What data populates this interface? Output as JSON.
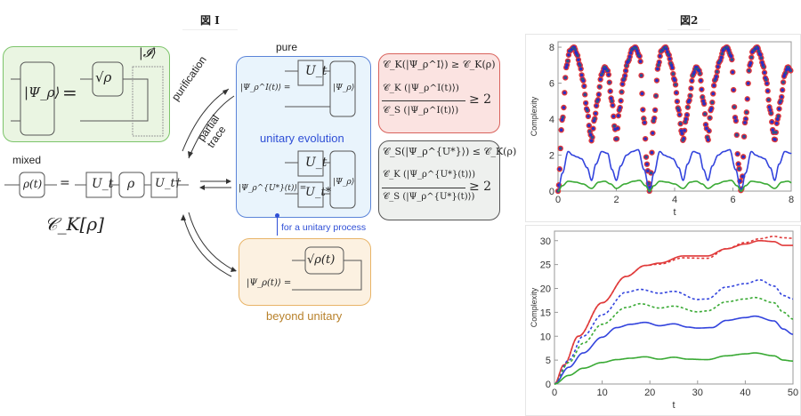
{
  "figure1": {
    "title": "図 I",
    "labels": {
      "pure": "pure",
      "mixed": "mixed",
      "unitary_evolution": "unitary evolution",
      "for_unitary_process": "for a unitary process",
      "beyond_unitary": "beyond unitary",
      "purification": "purification",
      "partial_trace": "partial trace"
    },
    "math": {
      "psi_rho": "|Ψ_ρ⟩",
      "equals": "=",
      "sqrt_rho": "√ρ",
      "identity_ket": "|𝓘⟩",
      "rho_t": "ρ(t)",
      "U_t": "U_t",
      "rho": "ρ",
      "U_t_dagger": "U_t†",
      "U_t_star": "U_t*",
      "ck_rho": "𝒞_K[ρ]",
      "psi_I_t": "|Ψ_ρ^I(t)⟩ =",
      "psi_Ustar_t": "|Ψ_ρ^{U*}(t)⟩ =",
      "psi_rho_t": "|Ψ_ρ(t)⟩ =",
      "sqrt_rho_t": "√ρ(t)"
    },
    "inequalities": {
      "red_line1": "𝒞_K(|Ψ_ρ^I⟩) ≥ 𝒞_K(ρ)",
      "red_num": "𝒞_K (|Ψ_ρ^I(t)⟩)",
      "red_den": "𝒞_S (|Ψ_ρ^I(t)⟩)",
      "red_rhs": "≥ 2",
      "gray_line1": "𝒞_S(|Ψ_ρ^{U*}⟩) ≤ 𝒞_K(ρ)",
      "gray_num": "𝒞_K (|Ψ_ρ^{U*}(t)⟩)",
      "gray_den": "𝒞_S (|Ψ_ρ^{U*}(t)⟩)",
      "gray_rhs": "≥ 2"
    },
    "colors": {
      "green": "#7cc46a",
      "blue": "#5b84d8",
      "orange": "#e8b468",
      "red": "#d9625c",
      "blue_text": "#2f4fd6",
      "orange_text": "#b8822c"
    }
  },
  "figure2": {
    "title": "図2"
  },
  "chart_data": [
    {
      "type": "line",
      "title": "",
      "xlabel": "t",
      "ylabel": "Complexity",
      "xlim": [
        0,
        8
      ],
      "ylim": [
        0,
        8.3
      ],
      "xticks": [
        0,
        2,
        4,
        6,
        8
      ],
      "yticks": [
        0,
        2,
        4,
        6,
        8
      ],
      "period": 3.1416,
      "series": [
        {
          "name": "red dots",
          "color": "#e03a3a",
          "style": "dots",
          "x": [
            0,
            0.15,
            0.3,
            0.4,
            0.55,
            0.65,
            0.75,
            0.85,
            1.0,
            1.1,
            1.15,
            1.25,
            1.35,
            1.5,
            1.6,
            1.7,
            1.85,
            1.95,
            2.0,
            2.1,
            2.25,
            2.4,
            2.55,
            2.65,
            2.8,
            2.95,
            3.05,
            3.14
          ],
          "y": [
            0,
            4.0,
            7.0,
            7.8,
            8.0,
            7.6,
            7.0,
            6.2,
            4.5,
            3.3,
            2.8,
            4.0,
            5.0,
            6.5,
            6.9,
            6.7,
            5.0,
            3.5,
            2.8,
            4.5,
            6.2,
            7.2,
            7.9,
            8.0,
            7.5,
            4.0,
            1.5,
            0
          ]
        },
        {
          "name": "blue dots",
          "color": "#2a2fc4",
          "style": "dots",
          "same_as": "red dots"
        },
        {
          "name": "green markers",
          "color": "#2e8b3a",
          "style": "dots",
          "same_as": "red dots"
        },
        {
          "name": "blue line",
          "color": "#3344dd",
          "style": "solid",
          "x": [
            0,
            0.15,
            0.35,
            0.5,
            0.65,
            0.8,
            1.0,
            1.15,
            1.3,
            1.5,
            1.7,
            1.85,
            2.0,
            2.15,
            2.35,
            2.55,
            2.75,
            2.95,
            3.14
          ],
          "y": [
            0,
            1.0,
            2.2,
            2.0,
            1.9,
            1.8,
            1.3,
            0.6,
            1.5,
            2.2,
            2.1,
            1.2,
            0.6,
            1.4,
            2.0,
            2.2,
            2.3,
            1.2,
            0
          ]
        },
        {
          "name": "green line",
          "color": "#3aaa35",
          "style": "solid",
          "x": [
            0,
            0.15,
            0.35,
            0.6,
            0.85,
            1.15,
            1.4,
            1.6,
            1.8,
            2.0,
            2.3,
            2.6,
            2.8,
            3.0,
            3.14
          ],
          "y": [
            0,
            0.3,
            0.55,
            0.5,
            0.4,
            0.15,
            0.5,
            0.55,
            0.4,
            0.15,
            0.4,
            0.55,
            0.6,
            0.3,
            0
          ]
        }
      ]
    },
    {
      "type": "line",
      "title": "",
      "xlabel": "t",
      "ylabel": "Complexity",
      "xlim": [
        0,
        50
      ],
      "ylim": [
        0,
        32
      ],
      "xticks": [
        0,
        10,
        20,
        30,
        40,
        50
      ],
      "yticks": [
        0,
        5,
        10,
        15,
        20,
        25,
        30
      ],
      "series": [
        {
          "name": "red solid",
          "color": "#e03a3a",
          "style": "solid",
          "x": [
            0,
            2,
            5,
            10,
            15,
            19,
            22,
            27,
            32,
            36,
            40,
            43,
            46,
            48,
            50
          ],
          "y": [
            0,
            4,
            10,
            17,
            22.5,
            24.8,
            25.3,
            26.8,
            26.8,
            28.3,
            29.3,
            30.0,
            29.8,
            29.0,
            29.0
          ]
        },
        {
          "name": "red dotted",
          "color": "#e03a3a",
          "style": "dotted",
          "x": [
            0,
            2,
            5,
            10,
            15,
            19,
            22,
            27,
            32,
            36,
            40,
            43,
            46,
            48,
            50
          ],
          "y": [
            0,
            4,
            10,
            17,
            22.5,
            24.8,
            25.1,
            26.4,
            26.3,
            28.3,
            29.6,
            30.4,
            30.9,
            30.6,
            30.5
          ]
        },
        {
          "name": "blue dotted",
          "color": "#3344dd",
          "style": "dotted",
          "x": [
            0,
            3,
            6,
            10,
            15,
            18,
            22,
            25,
            30,
            32,
            36,
            40,
            43,
            46,
            48,
            50
          ],
          "y": [
            0,
            5,
            10,
            14.5,
            19.2,
            19.8,
            19.0,
            19.4,
            17.7,
            17.8,
            20.3,
            21.0,
            21.8,
            20.5,
            18.5,
            17.8
          ]
        },
        {
          "name": "green dotted",
          "color": "#3aaa35",
          "style": "dotted",
          "x": [
            0,
            3,
            6,
            10,
            15,
            18,
            22,
            25,
            30,
            32,
            36,
            40,
            42,
            46,
            48,
            50
          ],
          "y": [
            0,
            4.5,
            8.5,
            12.5,
            16.0,
            16.8,
            15.9,
            16.3,
            15.1,
            15.3,
            17.2,
            17.8,
            18.1,
            17.0,
            15.0,
            13.6
          ]
        },
        {
          "name": "blue solid",
          "color": "#3344dd",
          "style": "solid",
          "x": [
            0,
            3,
            6,
            10,
            13,
            16,
            19,
            22,
            25,
            28,
            30,
            33,
            36,
            40,
            42,
            46,
            48,
            50
          ],
          "y": [
            0,
            3.5,
            6.5,
            9.8,
            11.8,
            12.5,
            12.9,
            12.2,
            12.6,
            11.9,
            11.7,
            11.8,
            13.3,
            13.9,
            14.2,
            13.2,
            11.5,
            10.4
          ]
        },
        {
          "name": "green solid",
          "color": "#3aaa35",
          "style": "solid",
          "x": [
            0,
            3,
            6,
            10,
            13,
            16,
            19,
            22,
            25,
            28,
            32,
            36,
            40,
            42,
            46,
            48,
            50
          ],
          "y": [
            0,
            1.8,
            3.3,
            4.5,
            5.1,
            5.4,
            5.7,
            5.2,
            5.6,
            5.2,
            5.1,
            5.9,
            6.3,
            6.5,
            5.9,
            5.0,
            4.8
          ]
        }
      ]
    }
  ]
}
